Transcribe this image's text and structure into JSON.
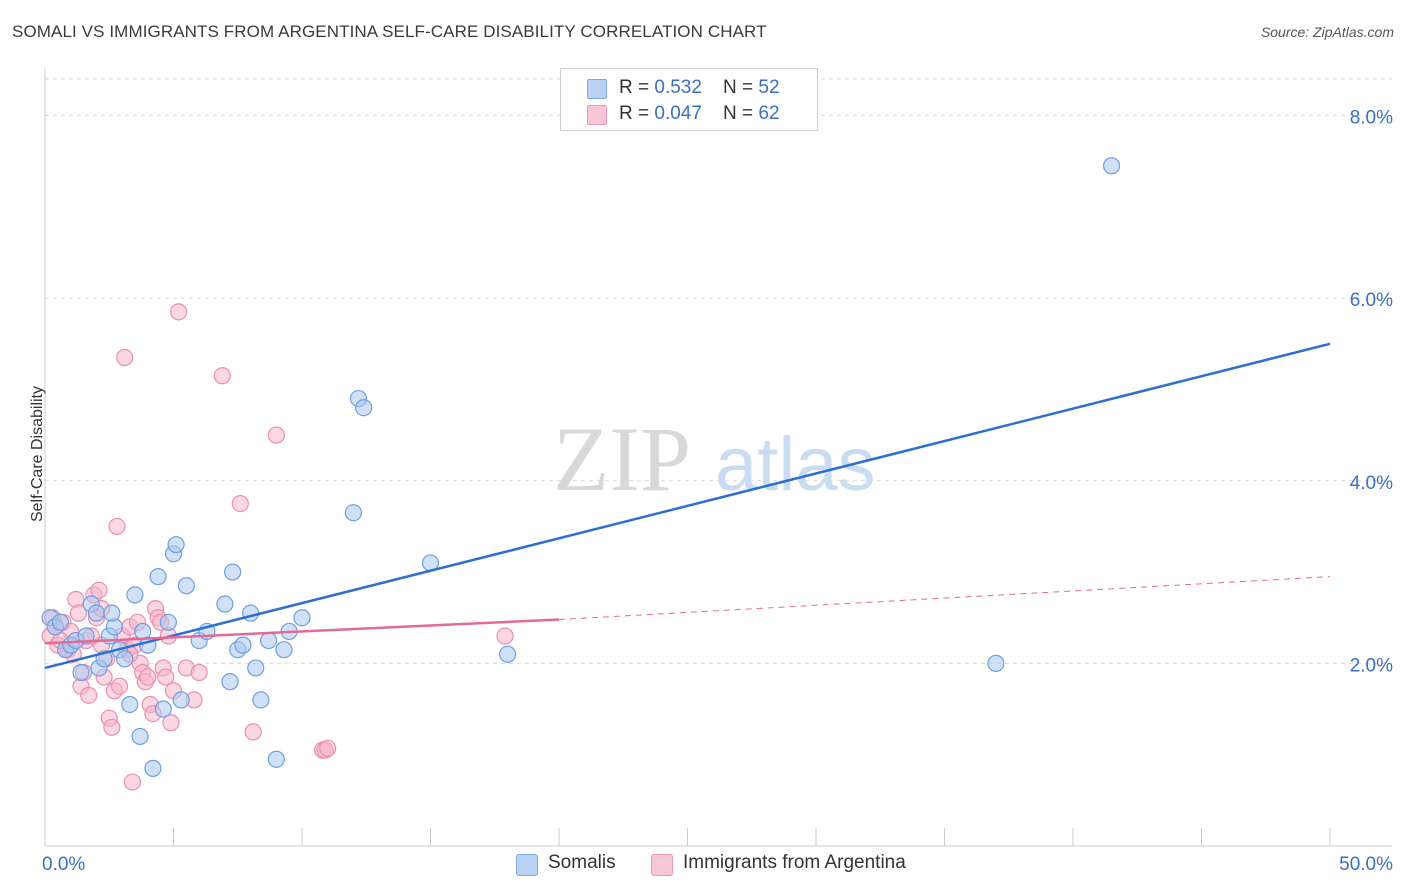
{
  "title": "SOMALI VS IMMIGRANTS FROM ARGENTINA SELF-CARE DISABILITY CORRELATION CHART",
  "source": "Source: ZipAtlas.com",
  "watermark": {
    "zip": "ZIP",
    "atlas": "atlas"
  },
  "legend_top": {
    "rows": [
      {
        "r_label": "R = ",
        "r_value": "0.532",
        "n_label": "N = ",
        "n_value": "52"
      },
      {
        "r_label": "R = ",
        "r_value": "0.047",
        "n_label": "N = ",
        "n_value": "62"
      }
    ]
  },
  "legend_bottom": {
    "series1": "Somalis",
    "series2": "Immigrants from Argentina"
  },
  "colors": {
    "blue_fill": "#a9c8f0",
    "blue_stroke": "#6f9fe0",
    "blue_line": "#2c6fd1",
    "pink_fill": "#f7b7cb",
    "pink_stroke": "#ec8fae",
    "pink_line": "#e36a95",
    "axis_text": "#3b6fc4",
    "grid": "#d9d9d9"
  },
  "chart_data": {
    "type": "scatter",
    "title": "SOMALI VS IMMIGRANTS FROM ARGENTINA SELF-CARE DISABILITY CORRELATION CHART",
    "xlabel": "",
    "ylabel": "Self-Care Disability",
    "xlim": [
      0,
      50
    ],
    "ylim": [
      0,
      8.4
    ],
    "x_tick_labels": [
      {
        "value": 0,
        "label": "0.0%"
      },
      {
        "value": 50,
        "label": "50.0%"
      }
    ],
    "y_ticks": [
      {
        "value": 2,
        "label": "2.0%"
      },
      {
        "value": 4,
        "label": "4.0%"
      },
      {
        "value": 6,
        "label": "6.0%"
      },
      {
        "value": 8,
        "label": "8.0%"
      }
    ],
    "series": [
      {
        "name": "Somalis",
        "color": "blue",
        "points": [
          [
            0.2,
            2.5
          ],
          [
            0.4,
            2.4
          ],
          [
            0.6,
            2.45
          ],
          [
            0.8,
            2.15
          ],
          [
            1.0,
            2.2
          ],
          [
            1.2,
            2.25
          ],
          [
            1.4,
            1.9
          ],
          [
            1.6,
            2.3
          ],
          [
            1.8,
            2.65
          ],
          [
            2.0,
            2.55
          ],
          [
            2.1,
            1.95
          ],
          [
            2.3,
            2.05
          ],
          [
            2.5,
            2.3
          ],
          [
            2.7,
            2.4
          ],
          [
            2.9,
            2.15
          ],
          [
            3.1,
            2.05
          ],
          [
            3.3,
            1.55
          ],
          [
            3.5,
            2.75
          ],
          [
            3.7,
            1.2
          ],
          [
            3.8,
            2.35
          ],
          [
            4.0,
            2.2
          ],
          [
            4.2,
            0.85
          ],
          [
            4.4,
            2.95
          ],
          [
            4.6,
            1.5
          ],
          [
            4.8,
            2.45
          ],
          [
            5.0,
            3.2
          ],
          [
            5.1,
            3.3
          ],
          [
            5.3,
            1.6
          ],
          [
            5.5,
            2.85
          ],
          [
            6.0,
            2.25
          ],
          [
            6.3,
            2.35
          ],
          [
            7.0,
            2.65
          ],
          [
            7.2,
            1.8
          ],
          [
            7.3,
            3.0
          ],
          [
            7.5,
            2.15
          ],
          [
            7.7,
            2.2
          ],
          [
            8.0,
            2.55
          ],
          [
            8.2,
            1.95
          ],
          [
            8.4,
            1.6
          ],
          [
            8.7,
            2.25
          ],
          [
            9.0,
            0.95
          ],
          [
            9.3,
            2.15
          ],
          [
            9.5,
            2.35
          ],
          [
            10.0,
            2.5
          ],
          [
            12.0,
            3.65
          ],
          [
            12.2,
            4.9
          ],
          [
            12.4,
            4.8
          ],
          [
            15.0,
            3.1
          ],
          [
            18.0,
            2.1
          ],
          [
            37.0,
            2.0
          ],
          [
            41.5,
            7.45
          ],
          [
            2.6,
            2.55
          ]
        ]
      },
      {
        "name": "Immigrants from Argentina",
        "color": "pink",
        "points": [
          [
            0.2,
            2.3
          ],
          [
            0.4,
            2.4
          ],
          [
            0.5,
            2.2
          ],
          [
            0.7,
            2.45
          ],
          [
            0.9,
            2.15
          ],
          [
            1.0,
            2.35
          ],
          [
            1.2,
            2.7
          ],
          [
            1.3,
            2.55
          ],
          [
            1.4,
            1.75
          ],
          [
            1.5,
            1.9
          ],
          [
            1.6,
            2.25
          ],
          [
            1.7,
            1.65
          ],
          [
            1.9,
            2.75
          ],
          [
            2.0,
            2.5
          ],
          [
            2.1,
            2.8
          ],
          [
            2.2,
            2.2
          ],
          [
            2.3,
            1.85
          ],
          [
            2.4,
            2.05
          ],
          [
            2.5,
            1.4
          ],
          [
            2.6,
            1.3
          ],
          [
            2.7,
            1.7
          ],
          [
            2.8,
            3.5
          ],
          [
            2.9,
            1.75
          ],
          [
            3.0,
            2.3
          ],
          [
            3.1,
            5.35
          ],
          [
            3.2,
            2.15
          ],
          [
            3.3,
            2.4
          ],
          [
            3.4,
            0.7
          ],
          [
            3.5,
            2.2
          ],
          [
            3.6,
            2.45
          ],
          [
            3.7,
            2.0
          ],
          [
            3.8,
            1.9
          ],
          [
            3.9,
            1.8
          ],
          [
            4.0,
            1.85
          ],
          [
            4.1,
            1.55
          ],
          [
            4.2,
            1.45
          ],
          [
            4.3,
            2.6
          ],
          [
            4.4,
            2.5
          ],
          [
            4.5,
            2.45
          ],
          [
            4.6,
            1.95
          ],
          [
            4.7,
            1.85
          ],
          [
            4.8,
            2.3
          ],
          [
            4.9,
            1.35
          ],
          [
            5.0,
            1.7
          ],
          [
            5.2,
            5.85
          ],
          [
            5.5,
            1.95
          ],
          [
            5.8,
            1.6
          ],
          [
            6.0,
            1.9
          ],
          [
            6.9,
            5.15
          ],
          [
            7.6,
            3.75
          ],
          [
            8.1,
            1.25
          ],
          [
            9.0,
            4.5
          ],
          [
            10.8,
            1.05
          ],
          [
            10.9,
            1.05
          ],
          [
            11.0,
            1.07
          ],
          [
            17.9,
            2.3
          ],
          [
            0.3,
            2.5
          ],
          [
            0.6,
            2.25
          ],
          [
            1.1,
            2.1
          ],
          [
            1.8,
            2.3
          ],
          [
            2.2,
            2.6
          ],
          [
            3.3,
            2.1
          ]
        ]
      }
    ],
    "trendlines": [
      {
        "series": "Somalis",
        "x": [
          0,
          50
        ],
        "y": [
          1.95,
          5.5
        ],
        "style": "solid"
      },
      {
        "series": "Immigrants from Argentina",
        "x": [
          0,
          20
        ],
        "y": [
          2.22,
          2.48
        ],
        "style": "solid"
      },
      {
        "series": "Immigrants from Argentina",
        "x": [
          20,
          50
        ],
        "y": [
          2.48,
          2.95
        ],
        "style": "dashed"
      }
    ]
  }
}
